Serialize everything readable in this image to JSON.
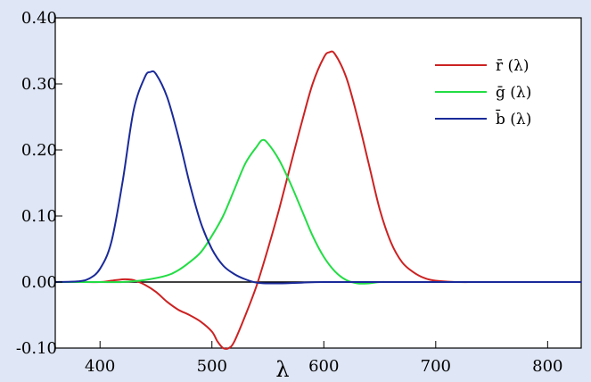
{
  "chart_data": {
    "type": "line",
    "title": "",
    "xlabel": "λ",
    "ylabel": "",
    "xlim": [
      360,
      830
    ],
    "ylim": [
      -0.1,
      0.4
    ],
    "grid": false,
    "legend_position": "top-right",
    "x_ticks": [
      400,
      500,
      600,
      700,
      800
    ],
    "x_tick_labels": [
      "400",
      "500",
      "600",
      "700",
      "800"
    ],
    "y_ticks": [
      -0.1,
      0.0,
      0.1,
      0.2,
      0.3,
      0.4
    ],
    "y_tick_labels": [
      "-0.10",
      "0.00",
      "0.10",
      "0.20",
      "0.30",
      "0.40"
    ],
    "reference_line_y": 0,
    "series": [
      {
        "name": "r̄ (λ)",
        "color": "#cc2222",
        "x": [
          360,
          380,
          400,
          410,
          420,
          425,
          430,
          440,
          450,
          460,
          470,
          480,
          490,
          500,
          505,
          510,
          515,
          520,
          530,
          540,
          550,
          560,
          570,
          580,
          590,
          600,
          605,
          610,
          620,
          630,
          640,
          650,
          660,
          670,
          680,
          690,
          700,
          720,
          740,
          780,
          830
        ],
        "y": [
          0.0,
          0.0,
          0.0,
          0.002,
          0.004,
          0.004,
          0.003,
          -0.004,
          -0.015,
          -0.03,
          -0.042,
          -0.05,
          -0.06,
          -0.075,
          -0.09,
          -0.1,
          -0.1,
          -0.09,
          -0.05,
          -0.005,
          0.05,
          0.11,
          0.175,
          0.24,
          0.3,
          0.34,
          0.348,
          0.345,
          0.31,
          0.25,
          0.18,
          0.11,
          0.06,
          0.03,
          0.015,
          0.006,
          0.002,
          0.0,
          0.0,
          0.0,
          0.0
        ]
      },
      {
        "name": "ḡ (λ)",
        "color": "#22dd44",
        "x": [
          360,
          380,
          400,
          420,
          440,
          460,
          470,
          480,
          490,
          500,
          510,
          520,
          530,
          540,
          545,
          550,
          560,
          570,
          580,
          590,
          600,
          610,
          620,
          630,
          640,
          650,
          660,
          680,
          700,
          830
        ],
        "y": [
          0.0,
          0.0,
          0.0,
          0.0,
          0.003,
          0.01,
          0.018,
          0.03,
          0.045,
          0.07,
          0.1,
          0.14,
          0.18,
          0.205,
          0.215,
          0.21,
          0.185,
          0.15,
          0.11,
          0.07,
          0.038,
          0.016,
          0.003,
          -0.002,
          -0.002,
          0.0,
          0.0,
          0.0,
          0.0,
          0.0
        ]
      },
      {
        "name": "b̄ (λ)",
        "color": "#1a2a99",
        "x": [
          360,
          380,
          390,
          400,
          410,
          420,
          430,
          440,
          445,
          450,
          460,
          470,
          480,
          490,
          500,
          510,
          520,
          530,
          540,
          550,
          560,
          580,
          600,
          650,
          700,
          830
        ],
        "y": [
          0.0,
          0.001,
          0.005,
          0.02,
          0.06,
          0.15,
          0.26,
          0.31,
          0.318,
          0.315,
          0.28,
          0.22,
          0.15,
          0.09,
          0.05,
          0.025,
          0.012,
          0.004,
          -0.001,
          -0.002,
          -0.002,
          -0.001,
          0.0,
          0.0,
          0.0,
          0.0
        ]
      }
    ]
  }
}
